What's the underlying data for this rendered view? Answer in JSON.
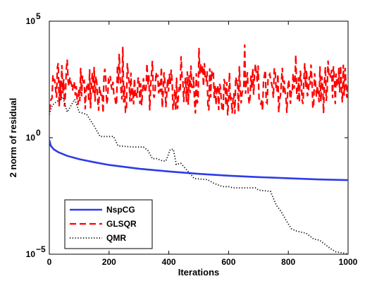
{
  "chart_data": {
    "type": "line",
    "title": "",
    "xlabel": "Iterations",
    "ylabel": "2 norm of residual",
    "xlim": [
      0,
      1000
    ],
    "ylim_log10": [
      -5,
      5
    ],
    "yscale": "log",
    "grid": false,
    "legend_position": "bottom-left",
    "x_ticks": [
      "0",
      "200",
      "400",
      "600",
      "800",
      "1000"
    ],
    "y_ticks": [
      {
        "base": "10",
        "exp": "5"
      },
      {
        "base": "10",
        "exp": "0"
      },
      {
        "base": "10",
        "exp": "−5"
      }
    ],
    "series": [
      {
        "name": "NspCG",
        "color": "#2d3de6",
        "style": "solid",
        "log10_y_points": [
          [
            0,
            -0.1
          ],
          [
            5,
            -0.35
          ],
          [
            15,
            -0.5
          ],
          [
            30,
            -0.62
          ],
          [
            60,
            -0.78
          ],
          [
            100,
            -0.92
          ],
          [
            150,
            -1.05
          ],
          [
            200,
            -1.17
          ],
          [
            300,
            -1.33
          ],
          [
            400,
            -1.45
          ],
          [
            500,
            -1.55
          ],
          [
            600,
            -1.63
          ],
          [
            700,
            -1.69
          ],
          [
            800,
            -1.74
          ],
          [
            900,
            -1.79
          ],
          [
            1000,
            -1.82
          ]
        ]
      },
      {
        "name": "GLSQR",
        "color": "#ff0000",
        "style": "dashed",
        "log10_y_mean": 2.1,
        "log10_y_range": [
          0.8,
          4.0
        ],
        "log10_y_peaks": [
          [
            30,
            3.2
          ],
          [
            60,
            3.35
          ],
          [
            105,
            3.0
          ],
          [
            235,
            3.6
          ],
          [
            245,
            3.9
          ],
          [
            260,
            3.2
          ],
          [
            345,
            3.3
          ],
          [
            440,
            3.5
          ],
          [
            500,
            3.85
          ],
          [
            520,
            3.2
          ],
          [
            655,
            4.0
          ],
          [
            700,
            3.1
          ],
          [
            780,
            3.0
          ],
          [
            825,
            3.55
          ],
          [
            855,
            3.2
          ],
          [
            990,
            3.0
          ]
        ]
      },
      {
        "name": "QMR",
        "color": "#000000",
        "style": "dotted",
        "log10_y_points": [
          [
            0,
            1.0
          ],
          [
            10,
            1.4
          ],
          [
            25,
            1.55
          ],
          [
            45,
            1.75
          ],
          [
            60,
            1.1
          ],
          [
            85,
            1.65
          ],
          [
            100,
            1.1
          ],
          [
            125,
            1.0
          ],
          [
            150,
            0.5
          ],
          [
            170,
            0.05
          ],
          [
            215,
            0.05
          ],
          [
            230,
            -0.35
          ],
          [
            280,
            -0.4
          ],
          [
            315,
            -0.4
          ],
          [
            330,
            -0.55
          ],
          [
            345,
            -0.9
          ],
          [
            360,
            -0.9
          ],
          [
            380,
            -1.0
          ],
          [
            390,
            -1.0
          ],
          [
            405,
            -0.5
          ],
          [
            415,
            -0.5
          ],
          [
            425,
            -1.15
          ],
          [
            440,
            -1.1
          ],
          [
            475,
            -1.6
          ],
          [
            485,
            -1.75
          ],
          [
            530,
            -1.8
          ],
          [
            550,
            -1.95
          ],
          [
            580,
            -2.1
          ],
          [
            600,
            -2.1
          ],
          [
            615,
            -2.15
          ],
          [
            690,
            -2.15
          ],
          [
            700,
            -2.25
          ],
          [
            740,
            -2.3
          ],
          [
            760,
            -2.9
          ],
          [
            775,
            -3.15
          ],
          [
            795,
            -3.6
          ],
          [
            810,
            -3.9
          ],
          [
            825,
            -4.0
          ],
          [
            860,
            -4.1
          ],
          [
            885,
            -4.35
          ],
          [
            905,
            -4.4
          ],
          [
            925,
            -4.6
          ],
          [
            940,
            -4.75
          ],
          [
            960,
            -4.9
          ],
          [
            985,
            -4.95
          ],
          [
            1000,
            -5.0
          ]
        ]
      }
    ]
  }
}
